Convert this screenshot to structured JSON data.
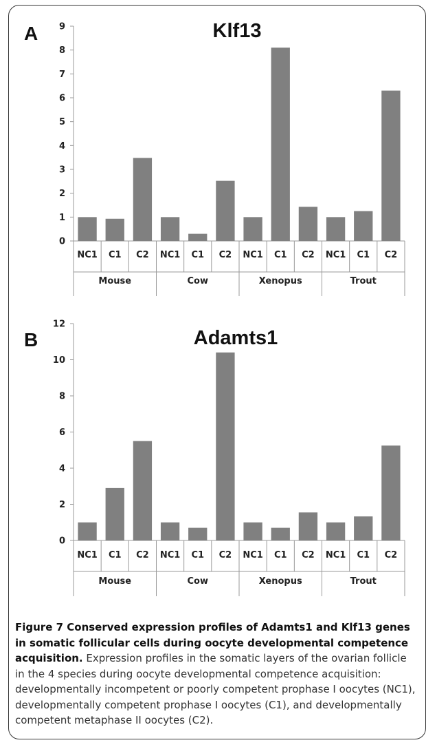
{
  "figure": {
    "caption_title": "Figure 7 Conserved expression profiles of Adamts1 and Klf13 genes in somatic follicular cells during oocyte developmental competence acquisition.",
    "caption_body": "Expression profiles in the somatic layers of the ovarian follicle in the 4 species during oocyte developmental competence acquisition: developmentally incompetent or poorly competent prophase I oocytes (NC1), developmentally competent prophase I oocytes (C1), and developmentally competent metaphase II oocytes (C2)."
  },
  "colors": {
    "bar": "#808080",
    "axis": "#999999",
    "text": "#222222"
  },
  "chart_data": [
    {
      "type": "bar",
      "panel": "A",
      "title": "Klf13",
      "groups": [
        "Mouse",
        "Cow",
        "Xenopus",
        "Trout"
      ],
      "categories": [
        "NC1",
        "C1",
        "C2",
        "NC1",
        "C1",
        "C2",
        "NC1",
        "C1",
        "C2",
        "NC1",
        "C1",
        "C2"
      ],
      "values": [
        1.0,
        0.93,
        3.48,
        1.0,
        0.3,
        2.52,
        1.0,
        8.1,
        1.43,
        1.0,
        1.25,
        6.3
      ],
      "yticks": [
        "0",
        "1",
        "2",
        "3",
        "4",
        "5",
        "6",
        "7",
        "8",
        "9"
      ],
      "ylim": [
        0,
        9
      ],
      "grid": false,
      "xlabel": "",
      "ylabel": ""
    },
    {
      "type": "bar",
      "panel": "B",
      "title": "Adamts1",
      "groups": [
        "Mouse",
        "Cow",
        "Xenopus",
        "Trout"
      ],
      "categories": [
        "NC1",
        "C1",
        "C2",
        "NC1",
        "C1",
        "C2",
        "NC1",
        "C1",
        "C2",
        "NC1",
        "C1",
        "C2"
      ],
      "values": [
        1.0,
        2.9,
        5.5,
        1.0,
        0.7,
        10.4,
        1.0,
        0.7,
        1.55,
        1.0,
        1.33,
        5.25
      ],
      "yticks": [
        "0",
        "2",
        "4",
        "6",
        "8",
        "10",
        "12"
      ],
      "ylim": [
        0,
        12
      ],
      "grid": false,
      "xlabel": "",
      "ylabel": ""
    }
  ]
}
